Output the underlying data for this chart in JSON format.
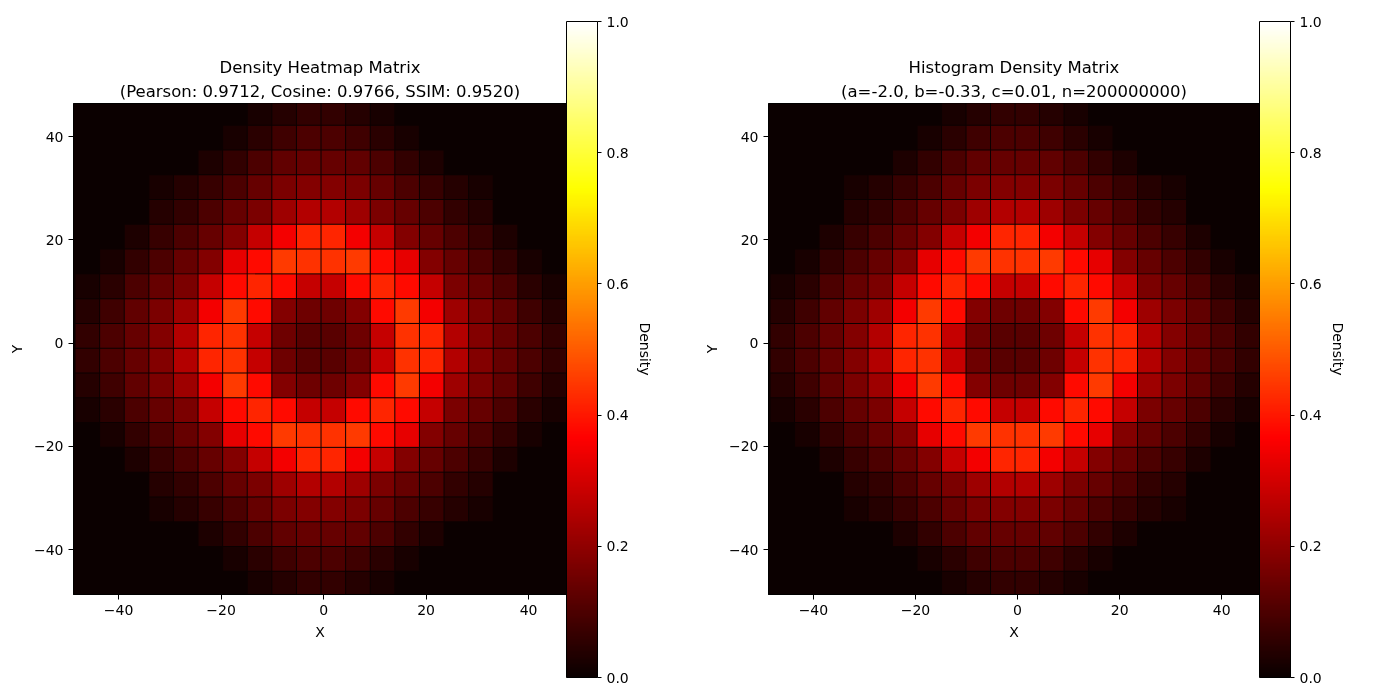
{
  "chart_data": [
    {
      "type": "scatter",
      "title": "Density Heatmap Matrix",
      "subtitle": "(Pearson: 0.9712, Cosine: 0.9766, SSIM: 0.9520)",
      "xlabel": "X",
      "ylabel": "Y",
      "clabel": "Density",
      "marker": "square",
      "x": [
        -12.5,
        -7.7,
        -2.9,
        1.9,
        6.7,
        11.5,
        -17.3,
        -12.5,
        -7.7,
        -2.9,
        1.9,
        6.7,
        11.5,
        16.3,
        -22.1,
        -17.3,
        -12.5,
        -7.7,
        -2.9,
        1.9,
        6.7,
        11.5,
        16.3,
        21.1,
        -31.7,
        -26.9,
        -22.1,
        -17.3,
        -12.5,
        -7.7,
        -2.9,
        1.9,
        6.7,
        11.5,
        16.3,
        21.1,
        25.9,
        30.7,
        -31.7,
        -26.9,
        -22.1,
        -17.3,
        -12.5,
        -7.7,
        -2.9,
        1.9,
        6.7,
        11.5,
        16.3,
        21.1,
        25.9,
        30.7,
        -36.5,
        -31.7,
        -26.9,
        -22.1,
        -17.3,
        -12.5,
        -7.7,
        -2.9,
        1.9,
        6.7,
        11.5,
        16.3,
        21.1,
        25.9,
        30.7,
        35.5,
        -41.3,
        -36.5,
        -31.7,
        -26.9,
        -22.1,
        -17.3,
        -12.5,
        -7.7,
        -2.9,
        1.9,
        6.7,
        11.5,
        16.3,
        21.1,
        25.9,
        30.7,
        35.5,
        40.3,
        -46.1,
        -41.3,
        -36.5,
        -31.7,
        -26.9,
        -22.1,
        -17.3,
        -12.5,
        -7.7,
        -2.9,
        1.9,
        6.7,
        11.5,
        16.3,
        21.1,
        25.9,
        30.7,
        35.5,
        40.3,
        45.1,
        -46.1,
        -41.3,
        -36.5,
        -31.7,
        -26.9,
        -22.1,
        -17.3,
        -12.5,
        -7.7,
        -2.9,
        1.9,
        6.7,
        11.5,
        16.3,
        21.1,
        25.9,
        30.7,
        35.5,
        40.3,
        45.1,
        -46.1,
        -41.3,
        -36.5,
        -31.7,
        -26.9,
        -22.1,
        -17.3,
        -12.5,
        -7.7,
        -2.9,
        1.9,
        6.7,
        11.5,
        16.3,
        21.1,
        25.9,
        30.7,
        35.5,
        40.3,
        45.1,
        -46.1,
        -41.3,
        -36.5,
        -31.7,
        -26.9,
        -22.1,
        -17.3,
        -12.5,
        -7.7,
        -2.9,
        1.9,
        6.7,
        11.5,
        16.3,
        21.1,
        25.9,
        30.7,
        35.5,
        40.3,
        45.1,
        -46.1,
        -41.3,
        -36.5,
        -31.7,
        -26.9,
        -22.1,
        -17.3,
        -12.5,
        -7.7,
        -2.9,
        1.9,
        6.7,
        11.5,
        16.3,
        21.1,
        25.9,
        30.7,
        35.5,
        40.3,
        45.1,
        -46.1,
        -41.3,
        -36.5,
        -31.7,
        -26.9,
        -22.1,
        -17.3,
        -12.5,
        -7.7,
        -2.9,
        1.9,
        6.7,
        11.5,
        16.3,
        21.1,
        25.9,
        30.7,
        35.5,
        40.3,
        45.1,
        -41.3,
        -36.5,
        -31.7,
        -26.9,
        -22.1,
        -17.3,
        -12.5,
        -7.7,
        -2.9,
        1.9,
        6.7,
        11.5,
        16.3,
        21.1,
        25.9,
        30.7,
        35.5,
        40.3,
        -36.5,
        -31.7,
        -26.9,
        -22.1,
        -17.3,
        -12.5,
        -7.7,
        -2.9,
        1.9,
        6.7,
        11.5,
        16.3,
        21.1,
        25.9,
        30.7,
        35.5,
        -31.7,
        -26.9,
        -22.1,
        -17.3,
        -12.5,
        -7.7,
        -2.9,
        1.9,
        6.7,
        11.5,
        16.3,
        21.1,
        25.9,
        30.7,
        -31.7,
        -26.9,
        -22.1,
        -17.3,
        -12.5,
        -7.7,
        -2.9,
        1.9,
        6.7,
        11.5,
        16.3,
        21.1,
        25.9,
        30.7,
        -22.1,
        -17.3,
        -12.5,
        -7.7,
        -2.9,
        1.9,
        6.7,
        11.5,
        16.3,
        21.1,
        -17.3,
        -12.5,
        -7.7,
        -2.9,
        1.9,
        6.7,
        11.5,
        16.3,
        -12.5,
        -7.7,
        -2.9,
        1.9,
        6.7,
        11.5
      ],
      "values": [
        44.6,
        44.6,
        44.6,
        44.6,
        44.6,
        44.6,
        39.8,
        39.8,
        39.8,
        39.8,
        39.8,
        39.8,
        39.8,
        39.8,
        35,
        35,
        35,
        35,
        35,
        35,
        35,
        35,
        35,
        35,
        30.2,
        30.2,
        30.2,
        30.2,
        30.2,
        30.2,
        30.2,
        30.2,
        30.2,
        30.2,
        30.2,
        30.2,
        30.2,
        30.2,
        25.4,
        25.4,
        25.4,
        25.4,
        25.4,
        25.4,
        25.4,
        25.4,
        25.4,
        25.4,
        25.4,
        25.4,
        25.4,
        25.4,
        20.6,
        20.6,
        20.6,
        20.6,
        20.6,
        20.6,
        20.6,
        20.6,
        20.6,
        20.6,
        20.6,
        20.6,
        20.6,
        20.6,
        20.6,
        20.6,
        15.8,
        15.8,
        15.8,
        15.8,
        15.8,
        15.8,
        15.8,
        15.8,
        15.8,
        15.8,
        15.8,
        15.8,
        15.8,
        15.8,
        15.8,
        15.8,
        15.8,
        15.8,
        11,
        11,
        11,
        11,
        11,
        11,
        11,
        11,
        11,
        11,
        11,
        11,
        11,
        11,
        11,
        11,
        11,
        11,
        11,
        11,
        6.2,
        6.2,
        6.2,
        6.2,
        6.2,
        6.2,
        6.2,
        6.2,
        6.2,
        6.2,
        6.2,
        6.2,
        6.2,
        6.2,
        6.2,
        6.2,
        6.2,
        6.2,
        6.2,
        6.2,
        1.4,
        1.4,
        1.4,
        1.4,
        1.4,
        1.4,
        1.4,
        1.4,
        1.4,
        1.4,
        1.4,
        1.4,
        1.4,
        1.4,
        1.4,
        1.4,
        1.4,
        1.4,
        1.4,
        1.4,
        -3.4,
        -3.4,
        -3.4,
        -3.4,
        -3.4,
        -3.4,
        -3.4,
        -3.4,
        -3.4,
        -3.4,
        -3.4,
        -3.4,
        -3.4,
        -3.4,
        -3.4,
        -3.4,
        -3.4,
        -3.4,
        -3.4,
        -3.4,
        -8.2,
        -8.2,
        -8.2,
        -8.2,
        -8.2,
        -8.2,
        -8.2,
        -8.2,
        -8.2,
        -8.2,
        -8.2,
        -8.2,
        -8.2,
        -8.2,
        -8.2,
        -8.2,
        -8.2,
        -8.2,
        -8.2,
        -8.2,
        -13,
        -13,
        -13,
        -13,
        -13,
        -13,
        -13,
        -13,
        -13,
        -13,
        -13,
        -13,
        -13,
        -13,
        -13,
        -13,
        -13,
        -13,
        -13,
        -13,
        -17.8,
        -17.8,
        -17.8,
        -17.8,
        -17.8,
        -17.8,
        -17.8,
        -17.8,
        -17.8,
        -17.8,
        -17.8,
        -17.8,
        -17.8,
        -17.8,
        -17.8,
        -17.8,
        -17.8,
        -17.8,
        -22.6,
        -22.6,
        -22.6,
        -22.6,
        -22.6,
        -22.6,
        -22.6,
        -22.6,
        -22.6,
        -22.6,
        -22.6,
        -22.6,
        -22.6,
        -22.6,
        -22.6,
        -22.6,
        -27.4,
        -27.4,
        -27.4,
        -27.4,
        -27.4,
        -27.4,
        -27.4,
        -27.4,
        -27.4,
        -27.4,
        -27.4,
        -27.4,
        -27.4,
        -27.4,
        -32.2,
        -32.2,
        -32.2,
        -32.2,
        -32.2,
        -32.2,
        -32.2,
        -32.2,
        -32.2,
        -32.2,
        -32.2,
        -32.2,
        -32.2,
        -32.2,
        -37,
        -37,
        -37,
        -37,
        -37,
        -37,
        -37,
        -37,
        -37,
        -37,
        -41.8,
        -41.8,
        -41.8,
        -41.8,
        -41.8,
        -41.8,
        -41.8,
        -41.8,
        -46.6,
        -46.6,
        -46.6,
        -46.6,
        -46.6,
        -46.6
      ],
      "cvalues": [
        0.02,
        0.04,
        0.06,
        0.06,
        0.04,
        0.02,
        0.02,
        0.05,
        0.08,
        0.1,
        0.1,
        0.08,
        0.05,
        0.02,
        0.03,
        0.06,
        0.1,
        0.13,
        0.14,
        0.14,
        0.13,
        0.1,
        0.06,
        0.03,
        0.02,
        0.04,
        0.07,
        0.1,
        0.14,
        0.17,
        0.18,
        0.18,
        0.17,
        0.14,
        0.1,
        0.07,
        0.04,
        0.02,
        0.04,
        0.06,
        0.1,
        0.14,
        0.17,
        0.22,
        0.25,
        0.25,
        0.22,
        0.17,
        0.14,
        0.1,
        0.06,
        0.04,
        0.03,
        0.07,
        0.1,
        0.14,
        0.18,
        0.28,
        0.35,
        0.42,
        0.42,
        0.35,
        0.28,
        0.18,
        0.14,
        0.1,
        0.07,
        0.03,
        0.02,
        0.06,
        0.1,
        0.14,
        0.18,
        0.33,
        0.38,
        0.45,
        0.44,
        0.44,
        0.45,
        0.38,
        0.33,
        0.18,
        0.14,
        0.1,
        0.06,
        0.02,
        0.02,
        0.05,
        0.1,
        0.14,
        0.17,
        0.28,
        0.38,
        0.42,
        0.38,
        0.28,
        0.28,
        0.38,
        0.42,
        0.38,
        0.28,
        0.17,
        0.14,
        0.1,
        0.05,
        0.02,
        0.04,
        0.08,
        0.13,
        0.17,
        0.22,
        0.35,
        0.45,
        0.38,
        0.18,
        0.15,
        0.15,
        0.18,
        0.38,
        0.45,
        0.35,
        0.22,
        0.17,
        0.13,
        0.08,
        0.04,
        0.06,
        0.1,
        0.14,
        0.18,
        0.25,
        0.42,
        0.44,
        0.28,
        0.15,
        0.12,
        0.12,
        0.15,
        0.28,
        0.44,
        0.42,
        0.25,
        0.18,
        0.14,
        0.1,
        0.06,
        0.06,
        0.1,
        0.14,
        0.18,
        0.25,
        0.42,
        0.44,
        0.28,
        0.15,
        0.12,
        0.12,
        0.15,
        0.28,
        0.44,
        0.42,
        0.25,
        0.18,
        0.14,
        0.1,
        0.06,
        0.04,
        0.08,
        0.13,
        0.17,
        0.22,
        0.35,
        0.45,
        0.38,
        0.18,
        0.15,
        0.15,
        0.18,
        0.38,
        0.45,
        0.35,
        0.22,
        0.17,
        0.13,
        0.08,
        0.04,
        0.02,
        0.05,
        0.1,
        0.14,
        0.17,
        0.28,
        0.38,
        0.42,
        0.38,
        0.28,
        0.28,
        0.38,
        0.42,
        0.38,
        0.28,
        0.17,
        0.14,
        0.1,
        0.05,
        0.02,
        0.02,
        0.06,
        0.1,
        0.14,
        0.18,
        0.33,
        0.38,
        0.45,
        0.44,
        0.44,
        0.45,
        0.38,
        0.33,
        0.18,
        0.14,
        0.1,
        0.06,
        0.02,
        0.03,
        0.07,
        0.1,
        0.14,
        0.18,
        0.28,
        0.35,
        0.42,
        0.42,
        0.35,
        0.28,
        0.18,
        0.14,
        0.1,
        0.07,
        0.03,
        0.04,
        0.06,
        0.1,
        0.14,
        0.17,
        0.22,
        0.25,
        0.25,
        0.22,
        0.17,
        0.14,
        0.1,
        0.06,
        0.04,
        0.02,
        0.04,
        0.07,
        0.1,
        0.14,
        0.17,
        0.18,
        0.18,
        0.17,
        0.14,
        0.1,
        0.07,
        0.04,
        0.02,
        0.03,
        0.06,
        0.1,
        0.13,
        0.14,
        0.14,
        0.13,
        0.1,
        0.06,
        0.03,
        0.02,
        0.05,
        0.08,
        0.1,
        0.1,
        0.08,
        0.05,
        0.02,
        0.02,
        0.04,
        0.06,
        0.06,
        0.04,
        0.02
      ],
      "xlim": [
        -48.8,
        47.4
      ],
      "ylim": [
        -48.7,
        46.4
      ],
      "xticks": [
        -40,
        -20,
        0,
        20,
        40
      ],
      "yticks": [
        -40,
        -20,
        0,
        20,
        40
      ],
      "clim": [
        0,
        1
      ],
      "cticks": [
        {
          "value": 0,
          "label": "0.0"
        },
        {
          "value": 0.2,
          "label": "0.2"
        },
        {
          "value": 0.4,
          "label": "0.4"
        },
        {
          "value": 0.6,
          "label": "0.6"
        },
        {
          "value": 0.8,
          "label": "0.8"
        },
        {
          "value": 1,
          "label": "1.0"
        }
      ]
    },
    {
      "type": "scatter",
      "title": "Histogram Density Matrix",
      "subtitle": "(a=-2.0, b=-0.33, c=0.01, n=200000000)",
      "xlabel": "X",
      "ylabel": "Y",
      "clabel": "Density",
      "marker": "square",
      "x": [
        -12.5,
        -7.7,
        -2.9,
        1.9,
        6.7,
        11.5,
        -17.3,
        -12.5,
        -7.7,
        -2.9,
        1.9,
        6.7,
        11.5,
        16.3,
        -22.1,
        -17.3,
        -12.5,
        -7.7,
        -2.9,
        1.9,
        6.7,
        11.5,
        16.3,
        21.1,
        -31.7,
        -26.9,
        -22.1,
        -17.3,
        -12.5,
        -7.7,
        -2.9,
        1.9,
        6.7,
        11.5,
        16.3,
        21.1,
        25.9,
        30.7,
        -31.7,
        -26.9,
        -22.1,
        -17.3,
        -12.5,
        -7.7,
        -2.9,
        1.9,
        6.7,
        11.5,
        16.3,
        21.1,
        25.9,
        30.7,
        -36.5,
        -31.7,
        -26.9,
        -22.1,
        -17.3,
        -12.5,
        -7.7,
        -2.9,
        1.9,
        6.7,
        11.5,
        16.3,
        21.1,
        25.9,
        30.7,
        35.5,
        -41.3,
        -36.5,
        -31.7,
        -26.9,
        -22.1,
        -17.3,
        -12.5,
        -7.7,
        -2.9,
        1.9,
        6.7,
        11.5,
        16.3,
        21.1,
        25.9,
        30.7,
        35.5,
        40.3,
        -46.1,
        -41.3,
        -36.5,
        -31.7,
        -26.9,
        -22.1,
        -17.3,
        -12.5,
        -7.7,
        -2.9,
        1.9,
        6.7,
        11.5,
        16.3,
        21.1,
        25.9,
        30.7,
        35.5,
        40.3,
        45.1,
        -46.1,
        -41.3,
        -36.5,
        -31.7,
        -26.9,
        -22.1,
        -17.3,
        -12.5,
        -7.7,
        -2.9,
        1.9,
        6.7,
        11.5,
        16.3,
        21.1,
        25.9,
        30.7,
        35.5,
        40.3,
        45.1,
        -46.1,
        -41.3,
        -36.5,
        -31.7,
        -26.9,
        -22.1,
        -17.3,
        -12.5,
        -7.7,
        -2.9,
        1.9,
        6.7,
        11.5,
        16.3,
        21.1,
        25.9,
        30.7,
        35.5,
        40.3,
        45.1,
        -46.1,
        -41.3,
        -36.5,
        -31.7,
        -26.9,
        -22.1,
        -17.3,
        -12.5,
        -7.7,
        -2.9,
        1.9,
        6.7,
        11.5,
        16.3,
        21.1,
        25.9,
        30.7,
        35.5,
        40.3,
        45.1,
        -46.1,
        -41.3,
        -36.5,
        -31.7,
        -26.9,
        -22.1,
        -17.3,
        -12.5,
        -7.7,
        -2.9,
        1.9,
        6.7,
        11.5,
        16.3,
        21.1,
        25.9,
        30.7,
        35.5,
        40.3,
        45.1,
        -46.1,
        -41.3,
        -36.5,
        -31.7,
        -26.9,
        -22.1,
        -17.3,
        -12.5,
        -7.7,
        -2.9,
        1.9,
        6.7,
        11.5,
        16.3,
        21.1,
        25.9,
        30.7,
        35.5,
        40.3,
        45.1,
        -41.3,
        -36.5,
        -31.7,
        -26.9,
        -22.1,
        -17.3,
        -12.5,
        -7.7,
        -2.9,
        1.9,
        6.7,
        11.5,
        16.3,
        21.1,
        25.9,
        30.7,
        35.5,
        40.3,
        -36.5,
        -31.7,
        -26.9,
        -22.1,
        -17.3,
        -12.5,
        -7.7,
        -2.9,
        1.9,
        6.7,
        11.5,
        16.3,
        21.1,
        25.9,
        30.7,
        35.5,
        -31.7,
        -26.9,
        -22.1,
        -17.3,
        -12.5,
        -7.7,
        -2.9,
        1.9,
        6.7,
        11.5,
        16.3,
        21.1,
        25.9,
        30.7,
        -31.7,
        -26.9,
        -22.1,
        -17.3,
        -12.5,
        -7.7,
        -2.9,
        1.9,
        6.7,
        11.5,
        16.3,
        21.1,
        25.9,
        30.7,
        -22.1,
        -17.3,
        -12.5,
        -7.7,
        -2.9,
        1.9,
        6.7,
        11.5,
        16.3,
        21.1,
        -17.3,
        -12.5,
        -7.7,
        -2.9,
        1.9,
        6.7,
        11.5,
        16.3,
        -12.5,
        -7.7,
        -2.9,
        1.9,
        6.7,
        11.5
      ],
      "values": [
        44.6,
        44.6,
        44.6,
        44.6,
        44.6,
        44.6,
        39.8,
        39.8,
        39.8,
        39.8,
        39.8,
        39.8,
        39.8,
        39.8,
        35,
        35,
        35,
        35,
        35,
        35,
        35,
        35,
        35,
        35,
        30.2,
        30.2,
        30.2,
        30.2,
        30.2,
        30.2,
        30.2,
        30.2,
        30.2,
        30.2,
        30.2,
        30.2,
        30.2,
        30.2,
        25.4,
        25.4,
        25.4,
        25.4,
        25.4,
        25.4,
        25.4,
        25.4,
        25.4,
        25.4,
        25.4,
        25.4,
        25.4,
        25.4,
        20.6,
        20.6,
        20.6,
        20.6,
        20.6,
        20.6,
        20.6,
        20.6,
        20.6,
        20.6,
        20.6,
        20.6,
        20.6,
        20.6,
        20.6,
        20.6,
        15.8,
        15.8,
        15.8,
        15.8,
        15.8,
        15.8,
        15.8,
        15.8,
        15.8,
        15.8,
        15.8,
        15.8,
        15.8,
        15.8,
        15.8,
        15.8,
        15.8,
        15.8,
        11,
        11,
        11,
        11,
        11,
        11,
        11,
        11,
        11,
        11,
        11,
        11,
        11,
        11,
        11,
        11,
        11,
        11,
        11,
        11,
        6.2,
        6.2,
        6.2,
        6.2,
        6.2,
        6.2,
        6.2,
        6.2,
        6.2,
        6.2,
        6.2,
        6.2,
        6.2,
        6.2,
        6.2,
        6.2,
        6.2,
        6.2,
        6.2,
        6.2,
        1.4,
        1.4,
        1.4,
        1.4,
        1.4,
        1.4,
        1.4,
        1.4,
        1.4,
        1.4,
        1.4,
        1.4,
        1.4,
        1.4,
        1.4,
        1.4,
        1.4,
        1.4,
        1.4,
        1.4,
        -3.4,
        -3.4,
        -3.4,
        -3.4,
        -3.4,
        -3.4,
        -3.4,
        -3.4,
        -3.4,
        -3.4,
        -3.4,
        -3.4,
        -3.4,
        -3.4,
        -3.4,
        -3.4,
        -3.4,
        -3.4,
        -3.4,
        -3.4,
        -8.2,
        -8.2,
        -8.2,
        -8.2,
        -8.2,
        -8.2,
        -8.2,
        -8.2,
        -8.2,
        -8.2,
        -8.2,
        -8.2,
        -8.2,
        -8.2,
        -8.2,
        -8.2,
        -8.2,
        -8.2,
        -8.2,
        -8.2,
        -13,
        -13,
        -13,
        -13,
        -13,
        -13,
        -13,
        -13,
        -13,
        -13,
        -13,
        -13,
        -13,
        -13,
        -13,
        -13,
        -13,
        -13,
        -13,
        -13,
        -17.8,
        -17.8,
        -17.8,
        -17.8,
        -17.8,
        -17.8,
        -17.8,
        -17.8,
        -17.8,
        -17.8,
        -17.8,
        -17.8,
        -17.8,
        -17.8,
        -17.8,
        -17.8,
        -17.8,
        -17.8,
        -22.6,
        -22.6,
        -22.6,
        -22.6,
        -22.6,
        -22.6,
        -22.6,
        -22.6,
        -22.6,
        -22.6,
        -22.6,
        -22.6,
        -22.6,
        -22.6,
        -22.6,
        -22.6,
        -27.4,
        -27.4,
        -27.4,
        -27.4,
        -27.4,
        -27.4,
        -27.4,
        -27.4,
        -27.4,
        -27.4,
        -27.4,
        -27.4,
        -27.4,
        -27.4,
        -32.2,
        -32.2,
        -32.2,
        -32.2,
        -32.2,
        -32.2,
        -32.2,
        -32.2,
        -32.2,
        -32.2,
        -32.2,
        -32.2,
        -32.2,
        -32.2,
        -37,
        -37,
        -37,
        -37,
        -37,
        -37,
        -37,
        -37,
        -37,
        -37,
        -41.8,
        -41.8,
        -41.8,
        -41.8,
        -41.8,
        -41.8,
        -41.8,
        -41.8,
        -46.6,
        -46.6,
        -46.6,
        -46.6,
        -46.6,
        -46.6
      ],
      "cvalues": [
        0.02,
        0.04,
        0.06,
        0.06,
        0.04,
        0.02,
        0.02,
        0.05,
        0.08,
        0.1,
        0.1,
        0.08,
        0.05,
        0.02,
        0.03,
        0.06,
        0.1,
        0.13,
        0.14,
        0.14,
        0.13,
        0.1,
        0.06,
        0.03,
        0.02,
        0.04,
        0.07,
        0.1,
        0.14,
        0.17,
        0.18,
        0.18,
        0.17,
        0.14,
        0.1,
        0.07,
        0.04,
        0.02,
        0.04,
        0.06,
        0.1,
        0.14,
        0.17,
        0.22,
        0.25,
        0.25,
        0.22,
        0.17,
        0.14,
        0.1,
        0.06,
        0.04,
        0.03,
        0.07,
        0.1,
        0.14,
        0.18,
        0.28,
        0.35,
        0.42,
        0.42,
        0.35,
        0.28,
        0.18,
        0.14,
        0.1,
        0.07,
        0.03,
        0.02,
        0.06,
        0.1,
        0.14,
        0.18,
        0.33,
        0.38,
        0.45,
        0.44,
        0.44,
        0.45,
        0.38,
        0.33,
        0.18,
        0.14,
        0.1,
        0.06,
        0.02,
        0.02,
        0.05,
        0.1,
        0.14,
        0.17,
        0.28,
        0.38,
        0.42,
        0.38,
        0.28,
        0.28,
        0.38,
        0.42,
        0.38,
        0.28,
        0.17,
        0.14,
        0.1,
        0.05,
        0.02,
        0.04,
        0.08,
        0.13,
        0.17,
        0.22,
        0.35,
        0.45,
        0.38,
        0.18,
        0.15,
        0.15,
        0.18,
        0.38,
        0.45,
        0.35,
        0.22,
        0.17,
        0.13,
        0.08,
        0.04,
        0.06,
        0.1,
        0.14,
        0.18,
        0.25,
        0.42,
        0.44,
        0.28,
        0.15,
        0.12,
        0.12,
        0.15,
        0.28,
        0.44,
        0.42,
        0.25,
        0.18,
        0.14,
        0.1,
        0.06,
        0.06,
        0.1,
        0.14,
        0.18,
        0.25,
        0.42,
        0.44,
        0.28,
        0.15,
        0.12,
        0.12,
        0.15,
        0.28,
        0.44,
        0.42,
        0.25,
        0.18,
        0.14,
        0.1,
        0.06,
        0.04,
        0.08,
        0.13,
        0.17,
        0.22,
        0.35,
        0.45,
        0.38,
        0.18,
        0.15,
        0.15,
        0.18,
        0.38,
        0.45,
        0.35,
        0.22,
        0.17,
        0.13,
        0.08,
        0.04,
        0.02,
        0.05,
        0.1,
        0.14,
        0.17,
        0.28,
        0.38,
        0.42,
        0.38,
        0.28,
        0.28,
        0.38,
        0.42,
        0.38,
        0.28,
        0.17,
        0.14,
        0.1,
        0.05,
        0.02,
        0.02,
        0.06,
        0.1,
        0.14,
        0.18,
        0.33,
        0.38,
        0.45,
        0.44,
        0.44,
        0.45,
        0.38,
        0.33,
        0.18,
        0.14,
        0.1,
        0.06,
        0.02,
        0.03,
        0.07,
        0.1,
        0.14,
        0.18,
        0.28,
        0.35,
        0.42,
        0.42,
        0.35,
        0.28,
        0.18,
        0.14,
        0.1,
        0.07,
        0.03,
        0.04,
        0.06,
        0.1,
        0.14,
        0.17,
        0.22,
        0.25,
        0.25,
        0.22,
        0.17,
        0.14,
        0.1,
        0.06,
        0.04,
        0.02,
        0.04,
        0.07,
        0.1,
        0.14,
        0.17,
        0.18,
        0.18,
        0.17,
        0.14,
        0.1,
        0.07,
        0.04,
        0.02,
        0.03,
        0.06,
        0.1,
        0.13,
        0.14,
        0.14,
        0.13,
        0.1,
        0.06,
        0.03,
        0.02,
        0.05,
        0.08,
        0.1,
        0.1,
        0.08,
        0.05,
        0.02,
        0.02,
        0.04,
        0.06,
        0.06,
        0.04,
        0.02
      ],
      "xlim": [
        -48.8,
        47.4
      ],
      "ylim": [
        -48.7,
        46.4
      ],
      "xticks": [
        -40,
        -20,
        0,
        20,
        40
      ],
      "yticks": [
        -40,
        -20,
        0,
        20,
        40
      ],
      "clim": [
        0,
        1
      ],
      "cticks": [
        {
          "value": 0,
          "label": "0.0"
        },
        {
          "value": 0.2,
          "label": "0.2"
        },
        {
          "value": 0.4,
          "label": "0.4"
        },
        {
          "value": 0.6,
          "label": "0.6"
        },
        {
          "value": 0.8,
          "label": "0.8"
        },
        {
          "value": 1,
          "label": "1.0"
        }
      ]
    }
  ]
}
